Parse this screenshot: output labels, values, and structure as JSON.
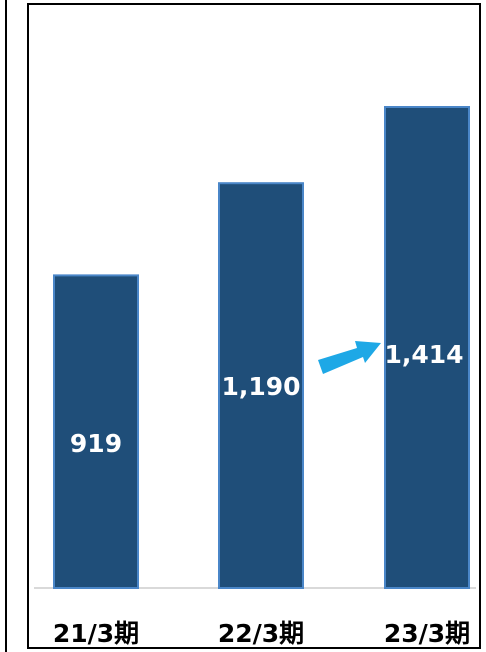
{
  "chart_data": {
    "type": "bar",
    "categories": [
      "21/3期",
      "22/3期",
      "23/3期"
    ],
    "values": [
      919,
      1190,
      1414
    ],
    "data_labels": [
      "919",
      "1,190",
      "1,414"
    ],
    "title": "",
    "xlabel": "",
    "ylabel": "",
    "ylim": [
      0,
      1650
    ],
    "grid": false,
    "legend": "none",
    "colors": {
      "bar_fill": "#1f4e79",
      "bar_stroke": "#4a86c8",
      "arrow": "#1ea8e6",
      "label_text": "#ffffff"
    },
    "annotations": [
      {
        "type": "arrow",
        "from_category": "22/3期",
        "to_category": "23/3期",
        "icon": "growth-arrow-icon"
      }
    ]
  }
}
